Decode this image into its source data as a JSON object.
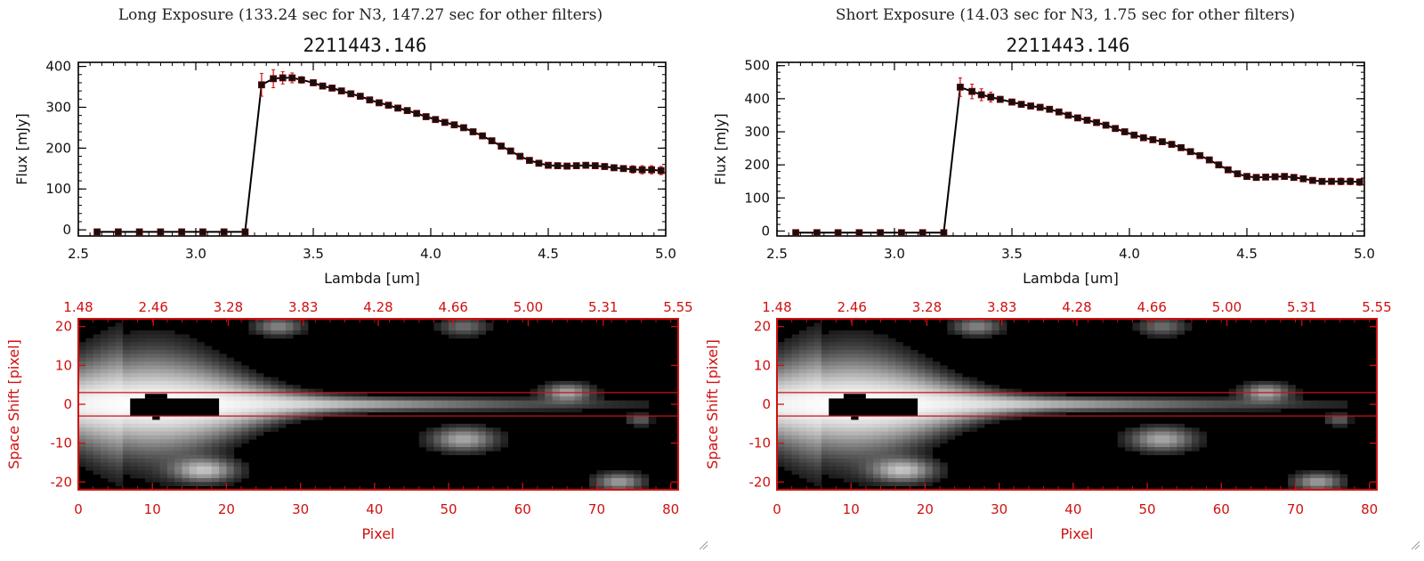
{
  "panels": [
    {
      "id": "long",
      "header": "Long Exposure (133.24 sec for N3, 147.27 sec for other filters)",
      "spectrum": {
        "title": "2211443.146",
        "xlabel": "Lambda [um]",
        "ylabel": "Flux [mJy]",
        "xlim": [
          2.5,
          5.0
        ],
        "ylim": [
          -15,
          410
        ],
        "xticks": [
          2.5,
          3.0,
          3.5,
          4.0,
          4.5,
          5.0
        ],
        "xtick_labels": [
          "2.5",
          "3.0",
          "3.5",
          "4.0",
          "4.5",
          "5.0"
        ],
        "yticks": [
          0,
          100,
          200,
          300,
          400
        ],
        "ytick_labels": [
          "0",
          "100",
          "200",
          "300",
          "400"
        ]
      },
      "image": {
        "xlabel": "Pixel",
        "ylabel": "Space Shift [pixel]",
        "xlim": [
          0,
          81
        ],
        "ylim": [
          -22,
          22
        ],
        "xticks": [
          0,
          10,
          20,
          30,
          40,
          50,
          60,
          70,
          80
        ],
        "xtick_labels": [
          "0",
          "10",
          "20",
          "30",
          "40",
          "50",
          "60",
          "70",
          "80"
        ],
        "yticks": [
          -20,
          -10,
          0,
          10,
          20
        ],
        "ytick_labels": [
          "-20",
          "-10",
          "0",
          "10",
          "20"
        ],
        "top_tick_labels": [
          "1.48",
          "2.46",
          "3.28",
          "3.83",
          "4.28",
          "4.66",
          "5.00",
          "5.31",
          "5.55"
        ],
        "aperture": [
          -3,
          3
        ]
      }
    },
    {
      "id": "short",
      "header": "Short Exposure (14.03 sec for N3, 1.75 sec for other filters)",
      "spectrum": {
        "title": "2211443.146",
        "xlabel": "Lambda [um]",
        "ylabel": "Flux [mJy]",
        "xlim": [
          2.5,
          5.0
        ],
        "ylim": [
          -15,
          510
        ],
        "xticks": [
          2.5,
          3.0,
          3.5,
          4.0,
          4.5,
          5.0
        ],
        "xtick_labels": [
          "2.5",
          "3.0",
          "3.5",
          "4.0",
          "4.5",
          "5.0"
        ],
        "yticks": [
          0,
          100,
          200,
          300,
          400,
          500
        ],
        "ytick_labels": [
          "0",
          "100",
          "200",
          "300",
          "400",
          "500"
        ]
      },
      "image": {
        "xlabel": "Pixel",
        "ylabel": "Space Shift [pixel]",
        "xlim": [
          0,
          81
        ],
        "ylim": [
          -22,
          22
        ],
        "xticks": [
          0,
          10,
          20,
          30,
          40,
          50,
          60,
          70,
          80
        ],
        "xtick_labels": [
          "0",
          "10",
          "20",
          "30",
          "40",
          "50",
          "60",
          "70",
          "80"
        ],
        "yticks": [
          -20,
          -10,
          0,
          10,
          20
        ],
        "ytick_labels": [
          "-20",
          "-10",
          "0",
          "10",
          "20"
        ],
        "top_tick_labels": [
          "1.48",
          "2.46",
          "3.28",
          "3.83",
          "4.28",
          "4.66",
          "5.00",
          "5.31",
          "5.55"
        ],
        "aperture": [
          -3,
          3
        ]
      }
    }
  ],
  "chart_data": [
    {
      "type": "line",
      "panel": "long",
      "title": "2211443.146",
      "xlabel": "Lambda [um]",
      "ylabel": "Flux [mJy]",
      "xlim": [
        2.5,
        5.0
      ],
      "ylim": [
        -15,
        410
      ],
      "series": [
        {
          "name": "flux",
          "x": [
            2.58,
            2.67,
            2.76,
            2.85,
            2.94,
            3.03,
            3.12,
            3.21,
            3.28,
            3.33,
            3.37,
            3.41,
            3.45,
            3.5,
            3.54,
            3.58,
            3.62,
            3.66,
            3.7,
            3.74,
            3.78,
            3.82,
            3.86,
            3.9,
            3.94,
            3.98,
            4.02,
            4.06,
            4.1,
            4.14,
            4.18,
            4.22,
            4.26,
            4.3,
            4.34,
            4.38,
            4.42,
            4.46,
            4.5,
            4.54,
            4.58,
            4.62,
            4.66,
            4.7,
            4.74,
            4.78,
            4.82,
            4.86,
            4.9,
            4.94,
            4.98
          ],
          "y": [
            -5,
            -5,
            -5,
            -5,
            -5,
            -5,
            -5,
            -5,
            355,
            370,
            372,
            372,
            367,
            360,
            352,
            347,
            340,
            333,
            327,
            318,
            311,
            305,
            298,
            292,
            285,
            277,
            270,
            263,
            257,
            250,
            240,
            230,
            218,
            205,
            193,
            180,
            170,
            163,
            158,
            157,
            156,
            157,
            158,
            157,
            155,
            152,
            150,
            148,
            147,
            147,
            145
          ],
          "yerr": [
            0,
            0,
            0,
            0,
            0,
            0,
            0,
            0,
            28,
            22,
            15,
            12,
            8,
            7,
            6,
            6,
            6,
            6,
            6,
            6,
            6,
            6,
            6,
            6,
            6,
            6,
            6,
            6,
            6,
            6,
            6,
            6,
            6,
            6,
            6,
            6,
            6,
            6,
            6,
            6,
            6,
            6,
            6,
            6,
            6,
            6,
            7,
            9,
            10,
            10,
            10
          ]
        }
      ]
    },
    {
      "type": "line",
      "panel": "short",
      "title": "2211443.146",
      "xlabel": "Lambda [um]",
      "ylabel": "Flux [mJy]",
      "xlim": [
        2.5,
        5.0
      ],
      "ylim": [
        -15,
        510
      ],
      "series": [
        {
          "name": "flux",
          "x": [
            2.58,
            2.67,
            2.76,
            2.85,
            2.94,
            3.03,
            3.12,
            3.21,
            3.28,
            3.33,
            3.37,
            3.41,
            3.45,
            3.5,
            3.54,
            3.58,
            3.62,
            3.66,
            3.7,
            3.74,
            3.78,
            3.82,
            3.86,
            3.9,
            3.94,
            3.98,
            4.02,
            4.06,
            4.1,
            4.14,
            4.18,
            4.22,
            4.26,
            4.3,
            4.34,
            4.38,
            4.42,
            4.46,
            4.5,
            4.54,
            4.58,
            4.62,
            4.66,
            4.7,
            4.74,
            4.78,
            4.82,
            4.86,
            4.9,
            4.94,
            4.98
          ],
          "y": [
            -5,
            -5,
            -5,
            -5,
            -5,
            -5,
            -5,
            -5,
            435,
            422,
            412,
            405,
            398,
            390,
            383,
            378,
            374,
            368,
            360,
            350,
            342,
            335,
            328,
            320,
            310,
            300,
            290,
            282,
            276,
            270,
            262,
            252,
            240,
            228,
            215,
            200,
            185,
            173,
            165,
            162,
            163,
            164,
            165,
            162,
            158,
            153,
            150,
            150,
            150,
            150,
            148
          ],
          "yerr": [
            0,
            0,
            0,
            0,
            0,
            0,
            0,
            0,
            28,
            22,
            18,
            15,
            9,
            7,
            7,
            7,
            7,
            7,
            7,
            7,
            7,
            7,
            7,
            7,
            7,
            7,
            7,
            7,
            7,
            7,
            7,
            7,
            7,
            7,
            7,
            7,
            7,
            7,
            7,
            7,
            7,
            7,
            7,
            7,
            7,
            7,
            8,
            9,
            10,
            10,
            10
          ]
        }
      ]
    },
    {
      "type": "heatmap",
      "panel": "long",
      "xlabel": "Pixel",
      "ylabel": "Space Shift [pixel]",
      "xlim": [
        0,
        81
      ],
      "ylim": [
        -22,
        22
      ],
      "secondary_x_labels": [
        "1.48",
        "2.46",
        "3.28",
        "3.83",
        "4.28",
        "4.66",
        "5.00",
        "5.31",
        "5.55"
      ],
      "aperture": [
        -3,
        3
      ],
      "bright_blobs": [
        {
          "x": 27,
          "y": 20,
          "level": 0.45,
          "spread": 3
        },
        {
          "x": 52,
          "y": 20,
          "level": 0.35,
          "spread": 3
        },
        {
          "x": 66,
          "y": 3,
          "level": 0.6,
          "spread": 3
        },
        {
          "x": 52,
          "y": -9,
          "level": 0.6,
          "spread": 4
        },
        {
          "x": 17,
          "y": -17,
          "level": 0.7,
          "spread": 4
        },
        {
          "x": 73,
          "y": -20,
          "level": 0.55,
          "spread": 3
        },
        {
          "x": 76,
          "y": -4,
          "level": 0.3,
          "spread": 2
        }
      ],
      "saturated_core": {
        "x_range": [
          7,
          19
        ],
        "y_range": [
          -3,
          2
        ]
      }
    },
    {
      "type": "heatmap",
      "panel": "short",
      "xlabel": "Pixel",
      "ylabel": "Space Shift [pixel]",
      "xlim": [
        0,
        81
      ],
      "ylim": [
        -22,
        22
      ],
      "secondary_x_labels": [
        "1.48",
        "2.46",
        "3.28",
        "3.83",
        "4.28",
        "4.66",
        "5.00",
        "5.31",
        "5.55"
      ],
      "aperture": [
        -3,
        3
      ],
      "bright_blobs": [
        {
          "x": 27,
          "y": 20,
          "level": 0.45,
          "spread": 3
        },
        {
          "x": 52,
          "y": 20,
          "level": 0.35,
          "spread": 3
        },
        {
          "x": 66,
          "y": 3,
          "level": 0.6,
          "spread": 3
        },
        {
          "x": 52,
          "y": -9,
          "level": 0.6,
          "spread": 4
        },
        {
          "x": 17,
          "y": -17,
          "level": 0.7,
          "spread": 4
        },
        {
          "x": 73,
          "y": -20,
          "level": 0.55,
          "spread": 3
        },
        {
          "x": 76,
          "y": -4,
          "level": 0.3,
          "spread": 2
        }
      ],
      "saturated_core": {
        "x_range": [
          7,
          19
        ],
        "y_range": [
          -3,
          2
        ]
      }
    }
  ]
}
